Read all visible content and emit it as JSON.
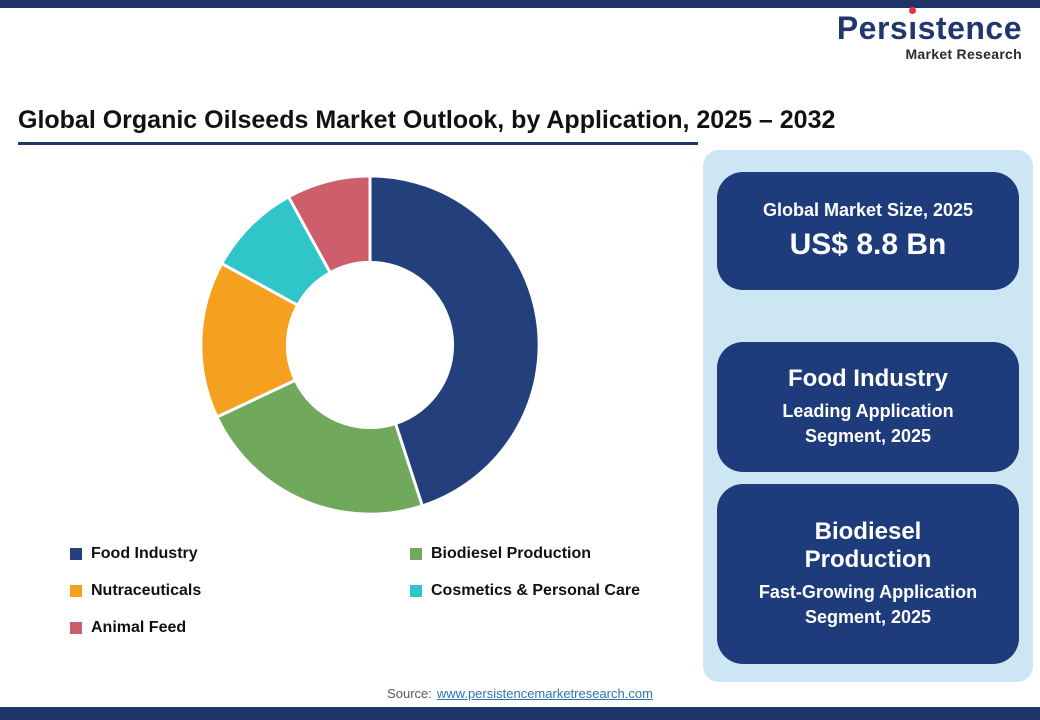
{
  "theme": {
    "navy": "#1F3468",
    "logo_navy": "#20386E",
    "logo_red": "#ED3237",
    "card_bg": "#1E3C7B",
    "panel_bg": "#CDE6F4",
    "link": "#2E75B6"
  },
  "logo": {
    "brand_full": "Persistence",
    "brand_pre": "Pers",
    "brand_i": "ı",
    "brand_post": "stence",
    "tagline": "Market Research"
  },
  "header": {
    "title": "Global Organic Oilseeds Market Outlook, by Application, 2025 – 2032"
  },
  "chart_data": {
    "type": "pie",
    "subtype": "donut",
    "title": "Global Organic Oilseeds Market Outlook, by Application, 2025 – 2032",
    "categories": [
      "Food Industry",
      "Biodiesel Production",
      "Nutraceuticals",
      "Cosmetics & Personal Care",
      "Animal Feed"
    ],
    "values": [
      45,
      23,
      15,
      9,
      8
    ],
    "values_note": "percent share estimated from arc angles; no numeric labels shown in image",
    "colors": [
      "#24407C",
      "#70A85C",
      "#F5A01E",
      "#30C5C9",
      "#CE5E6C"
    ],
    "start_angle_deg": 0,
    "direction": "clockwise",
    "legend_position": "bottom"
  },
  "side_panel": {
    "cards": [
      {
        "line1": "Global Market Size, 2025",
        "line2": "US$ 8.8 Bn"
      },
      {
        "line1": "Food Industry",
        "line2": "Leading Application Segment, 2025"
      },
      {
        "line1": "Biodiesel Production",
        "line2": "Fast-Growing Application Segment, 2025"
      }
    ]
  },
  "footer": {
    "source_prefix": "Source:",
    "source_link": "www.persistencemarketresearch.com"
  }
}
